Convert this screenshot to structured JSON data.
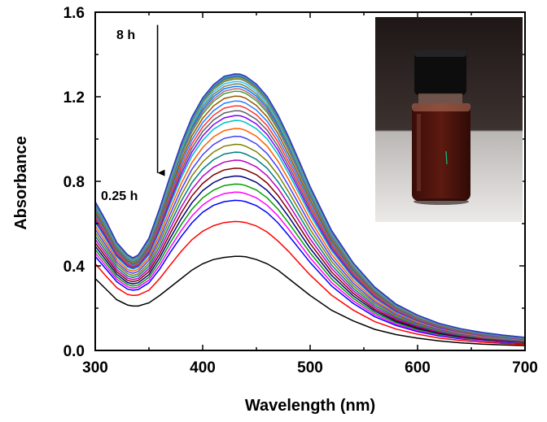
{
  "chart_data": {
    "type": "line",
    "title": "",
    "xlabel": "Wavelength (nm)",
    "ylabel": "Absorbance",
    "xlim": [
      300,
      700
    ],
    "ylim": [
      0.0,
      1.6
    ],
    "x_ticks": [
      "300",
      "400",
      "500",
      "600",
      "700"
    ],
    "y_ticks": [
      "0.0",
      "0.4",
      "0.8",
      "1.2",
      "1.6"
    ],
    "grid": false,
    "legend": "none",
    "annotations": {
      "top_label": "8 h",
      "bottom_label": "0.25 h",
      "arrow_x": 358,
      "arrow_y_from": 1.54,
      "arrow_y_to": 0.84
    },
    "inset_image": "photo-of-vial-with-dark-red-solution",
    "x": [
      300,
      310,
      320,
      330,
      335,
      340,
      350,
      360,
      370,
      380,
      390,
      400,
      410,
      420,
      430,
      435,
      440,
      450,
      460,
      470,
      480,
      490,
      500,
      520,
      540,
      560,
      580,
      600,
      620,
      640,
      660,
      680,
      700
    ],
    "series_colors": [
      "#000000",
      "#ff0000",
      "#0000ff",
      "#ff00ff",
      "#00a000",
      "#000080",
      "#800000",
      "#c000c0",
      "#008080",
      "#808000",
      "#4040ff",
      "#ff6000",
      "#00c0c0",
      "#8000ff",
      "#606060",
      "#ff3030",
      "#2080ff",
      "#a05000",
      "#40a040",
      "#c06080",
      "#0080ff",
      "#808040",
      "#30c0ff",
      "#608080",
      "#a0a020",
      "#4060a0",
      "#20a0a0",
      "#6060ff",
      "#40c080",
      "#3030c0"
    ],
    "series": [
      {
        "values": [
          0.34,
          0.29,
          0.24,
          0.215,
          0.21,
          0.21,
          0.225,
          0.26,
          0.3,
          0.34,
          0.38,
          0.41,
          0.43,
          0.44,
          0.445,
          0.445,
          0.443,
          0.43,
          0.41,
          0.38,
          0.34,
          0.3,
          0.26,
          0.19,
          0.14,
          0.1,
          0.075,
          0.058,
          0.045,
          0.036,
          0.03,
          0.026,
          0.023
        ]
      },
      {
        "values": [
          0.41,
          0.352,
          0.297,
          0.265,
          0.26,
          0.262,
          0.285,
          0.34,
          0.405,
          0.469,
          0.524,
          0.564,
          0.59,
          0.605,
          0.61,
          0.609,
          0.605,
          0.589,
          0.56,
          0.518,
          0.468,
          0.412,
          0.357,
          0.261,
          0.191,
          0.137,
          0.101,
          0.077,
          0.059,
          0.047,
          0.039,
          0.033,
          0.028
        ]
      },
      {
        "values": [
          0.445,
          0.385,
          0.325,
          0.29,
          0.285,
          0.288,
          0.32,
          0.385,
          0.465,
          0.539,
          0.604,
          0.654,
          0.686,
          0.704,
          0.71,
          0.709,
          0.704,
          0.685,
          0.652,
          0.604,
          0.544,
          0.48,
          0.416,
          0.305,
          0.223,
          0.16,
          0.118,
          0.089,
          0.069,
          0.055,
          0.046,
          0.039,
          0.033
        ]
      },
      {
        "values": [
          0.461,
          0.399,
          0.337,
          0.301,
          0.295,
          0.299,
          0.333,
          0.403,
          0.488,
          0.567,
          0.636,
          0.688,
          0.722,
          0.742,
          0.749,
          0.748,
          0.742,
          0.722,
          0.687,
          0.637,
          0.574,
          0.506,
          0.438,
          0.321,
          0.235,
          0.169,
          0.124,
          0.094,
          0.073,
          0.058,
          0.048,
          0.041,
          0.035
        ]
      },
      {
        "values": [
          0.477,
          0.413,
          0.348,
          0.311,
          0.305,
          0.309,
          0.346,
          0.421,
          0.511,
          0.595,
          0.668,
          0.722,
          0.758,
          0.78,
          0.787,
          0.786,
          0.78,
          0.759,
          0.722,
          0.669,
          0.603,
          0.532,
          0.461,
          0.338,
          0.247,
          0.178,
          0.131,
          0.099,
          0.076,
          0.061,
          0.051,
          0.043,
          0.037
        ]
      },
      {
        "values": [
          0.493,
          0.427,
          0.36,
          0.321,
          0.315,
          0.32,
          0.359,
          0.439,
          0.533,
          0.622,
          0.699,
          0.756,
          0.794,
          0.817,
          0.825,
          0.824,
          0.817,
          0.795,
          0.757,
          0.702,
          0.633,
          0.558,
          0.483,
          0.355,
          0.259,
          0.187,
          0.137,
          0.104,
          0.08,
          0.064,
          0.053,
          0.045,
          0.039
        ]
      },
      {
        "values": [
          0.509,
          0.441,
          0.372,
          0.332,
          0.325,
          0.331,
          0.373,
          0.457,
          0.556,
          0.65,
          0.731,
          0.79,
          0.83,
          0.854,
          0.862,
          0.861,
          0.854,
          0.831,
          0.792,
          0.734,
          0.662,
          0.584,
          0.506,
          0.371,
          0.271,
          0.195,
          0.143,
          0.109,
          0.084,
          0.067,
          0.055,
          0.047,
          0.04
        ]
      },
      {
        "values": [
          0.525,
          0.455,
          0.383,
          0.342,
          0.335,
          0.341,
          0.386,
          0.475,
          0.579,
          0.678,
          0.762,
          0.824,
          0.866,
          0.891,
          0.9,
          0.899,
          0.892,
          0.868,
          0.827,
          0.767,
          0.691,
          0.61,
          0.528,
          0.388,
          0.283,
          0.204,
          0.15,
          0.114,
          0.088,
          0.07,
          0.058,
          0.049,
          0.042
        ]
      },
      {
        "values": [
          0.541,
          0.469,
          0.395,
          0.352,
          0.345,
          0.352,
          0.399,
          0.493,
          0.602,
          0.706,
          0.794,
          0.858,
          0.902,
          0.929,
          0.938,
          0.937,
          0.929,
          0.904,
          0.862,
          0.799,
          0.721,
          0.636,
          0.551,
          0.404,
          0.295,
          0.213,
          0.156,
          0.118,
          0.091,
          0.073,
          0.06,
          0.051,
          0.044
        ]
      },
      {
        "values": [
          0.557,
          0.483,
          0.407,
          0.363,
          0.355,
          0.362,
          0.412,
          0.511,
          0.625,
          0.734,
          0.826,
          0.892,
          0.938,
          0.966,
          0.975,
          0.974,
          0.966,
          0.94,
          0.896,
          0.831,
          0.75,
          0.662,
          0.573,
          0.421,
          0.307,
          0.222,
          0.162,
          0.123,
          0.095,
          0.076,
          0.062,
          0.053,
          0.045
        ]
      },
      {
        "values": [
          0.573,
          0.497,
          0.418,
          0.373,
          0.365,
          0.373,
          0.426,
          0.529,
          0.648,
          0.761,
          0.857,
          0.926,
          0.974,
          1.003,
          1.013,
          1.012,
          1.004,
          0.977,
          0.931,
          0.864,
          0.779,
          0.688,
          0.596,
          0.437,
          0.319,
          0.23,
          0.169,
          0.128,
          0.099,
          0.079,
          0.065,
          0.055,
          0.047
        ]
      },
      {
        "values": [
          0.589,
          0.511,
          0.43,
          0.383,
          0.375,
          0.384,
          0.439,
          0.547,
          0.671,
          0.789,
          0.889,
          0.96,
          1.01,
          1.04,
          1.05,
          1.049,
          1.041,
          1.013,
          0.966,
          0.896,
          0.808,
          0.714,
          0.618,
          0.454,
          0.331,
          0.239,
          0.175,
          0.133,
          0.103,
          0.082,
          0.067,
          0.057,
          0.049
        ]
      },
      {
        "values": [
          0.605,
          0.525,
          0.442,
          0.394,
          0.385,
          0.394,
          0.452,
          0.565,
          0.694,
          0.817,
          0.92,
          0.994,
          1.046,
          1.077,
          1.088,
          1.087,
          1.078,
          1.049,
          1.0,
          0.928,
          0.837,
          0.74,
          0.641,
          0.471,
          0.343,
          0.248,
          0.181,
          0.138,
          0.106,
          0.085,
          0.07,
          0.059,
          0.051
        ]
      },
      {
        "values": [
          0.615,
          0.534,
          0.449,
          0.4,
          0.39,
          0.4,
          0.46,
          0.576,
          0.708,
          0.833,
          0.939,
          1.015,
          1.068,
          1.1,
          1.111,
          1.11,
          1.101,
          1.071,
          1.021,
          0.948,
          0.855,
          0.756,
          0.655,
          0.481,
          0.351,
          0.253,
          0.185,
          0.141,
          0.108,
          0.087,
          0.071,
          0.061,
          0.052
        ]
      },
      {
        "values": [
          0.625,
          0.543,
          0.456,
          0.406,
          0.395,
          0.405,
          0.468,
          0.587,
          0.722,
          0.85,
          0.958,
          1.036,
          1.09,
          1.123,
          1.134,
          1.133,
          1.124,
          1.093,
          1.042,
          0.967,
          0.873,
          0.772,
          0.669,
          0.491,
          0.358,
          0.259,
          0.189,
          0.144,
          0.111,
          0.089,
          0.073,
          0.062,
          0.053
        ]
      },
      {
        "values": [
          0.635,
          0.552,
          0.463,
          0.412,
          0.4,
          0.411,
          0.476,
          0.598,
          0.736,
          0.867,
          0.977,
          1.057,
          1.112,
          1.146,
          1.157,
          1.156,
          1.147,
          1.115,
          1.063,
          0.987,
          0.891,
          0.788,
          0.683,
          0.501,
          0.366,
          0.264,
          0.193,
          0.147,
          0.113,
          0.09,
          0.074,
          0.063,
          0.054
        ]
      },
      {
        "values": [
          0.645,
          0.561,
          0.47,
          0.418,
          0.405,
          0.416,
          0.484,
          0.609,
          0.75,
          0.884,
          0.996,
          1.078,
          1.134,
          1.169,
          1.18,
          1.179,
          1.17,
          1.137,
          1.084,
          1.006,
          0.909,
          0.804,
          0.697,
          0.511,
          0.373,
          0.27,
          0.197,
          0.15,
          0.115,
          0.092,
          0.076,
          0.064,
          0.055
        ]
      },
      {
        "values": [
          0.655,
          0.57,
          0.477,
          0.424,
          0.41,
          0.422,
          0.492,
          0.62,
          0.764,
          0.9,
          1.015,
          1.098,
          1.156,
          1.192,
          1.203,
          1.202,
          1.193,
          1.159,
          1.105,
          1.026,
          0.927,
          0.82,
          0.711,
          0.521,
          0.381,
          0.275,
          0.201,
          0.153,
          0.117,
          0.094,
          0.077,
          0.066,
          0.056
        ]
      },
      {
        "values": [
          0.665,
          0.579,
          0.484,
          0.43,
          0.415,
          0.427,
          0.5,
          0.631,
          0.778,
          0.917,
          1.034,
          1.119,
          1.178,
          1.215,
          1.226,
          1.225,
          1.216,
          1.181,
          1.126,
          1.045,
          0.945,
          0.836,
          0.725,
          0.531,
          0.388,
          0.281,
          0.205,
          0.156,
          0.12,
          0.096,
          0.079,
          0.067,
          0.057
        ]
      },
      {
        "values": [
          0.67,
          0.583,
          0.488,
          0.433,
          0.418,
          0.43,
          0.504,
          0.636,
          0.785,
          0.925,
          1.044,
          1.13,
          1.189,
          1.226,
          1.238,
          1.237,
          1.227,
          1.192,
          1.136,
          1.055,
          0.954,
          0.844,
          0.732,
          0.536,
          0.392,
          0.284,
          0.207,
          0.157,
          0.121,
          0.097,
          0.08,
          0.068,
          0.058
        ]
      },
      {
        "values": [
          0.675,
          0.588,
          0.491,
          0.436,
          0.421,
          0.433,
          0.508,
          0.642,
          0.792,
          0.934,
          1.053,
          1.14,
          1.2,
          1.238,
          1.249,
          1.248,
          1.239,
          1.203,
          1.147,
          1.064,
          0.963,
          0.852,
          0.739,
          0.541,
          0.396,
          0.286,
          0.209,
          0.159,
          0.122,
          0.098,
          0.08,
          0.068,
          0.058
        ]
      },
      {
        "values": [
          0.68,
          0.592,
          0.495,
          0.439,
          0.424,
          0.436,
          0.512,
          0.647,
          0.799,
          0.942,
          1.063,
          1.151,
          1.211,
          1.249,
          1.261,
          1.26,
          1.25,
          1.214,
          1.157,
          1.074,
          0.972,
          0.86,
          0.746,
          0.546,
          0.399,
          0.289,
          0.211,
          0.16,
          0.123,
          0.099,
          0.081,
          0.069,
          0.059
        ]
      },
      {
        "values": [
          0.685,
          0.597,
          0.498,
          0.442,
          0.427,
          0.439,
          0.516,
          0.653,
          0.806,
          0.951,
          1.072,
          1.161,
          1.222,
          1.261,
          1.272,
          1.271,
          1.262,
          1.225,
          1.168,
          1.083,
          0.981,
          0.868,
          0.753,
          0.551,
          0.403,
          0.291,
          0.213,
          0.162,
          0.124,
          0.1,
          0.082,
          0.07,
          0.06
        ]
      },
      {
        "values": [
          0.69,
          0.601,
          0.502,
          0.445,
          0.43,
          0.442,
          0.52,
          0.658,
          0.813,
          0.959,
          1.082,
          1.172,
          1.233,
          1.272,
          1.284,
          1.283,
          1.273,
          1.236,
          1.178,
          1.093,
          0.99,
          0.876,
          0.76,
          0.556,
          0.407,
          0.294,
          0.215,
          0.163,
          0.125,
          0.1,
          0.083,
          0.07,
          0.06
        ]
      },
      {
        "values": [
          0.693,
          0.604,
          0.504,
          0.447,
          0.432,
          0.444,
          0.522,
          0.661,
          0.817,
          0.963,
          1.087,
          1.177,
          1.238,
          1.277,
          1.289,
          1.288,
          1.278,
          1.241,
          1.183,
          1.098,
          0.994,
          0.88,
          0.763,
          0.559,
          0.409,
          0.295,
          0.216,
          0.164,
          0.126,
          0.101,
          0.083,
          0.071,
          0.06
        ]
      },
      {
        "values": [
          0.696,
          0.606,
          0.506,
          0.449,
          0.434,
          0.446,
          0.525,
          0.665,
          0.821,
          0.968,
          1.092,
          1.182,
          1.244,
          1.283,
          1.295,
          1.294,
          1.284,
          1.247,
          1.189,
          1.103,
          0.999,
          0.884,
          0.767,
          0.561,
          0.411,
          0.297,
          0.217,
          0.165,
          0.126,
          0.101,
          0.084,
          0.071,
          0.061
        ]
      },
      {
        "values": [
          0.698,
          0.608,
          0.508,
          0.45,
          0.435,
          0.448,
          0.527,
          0.667,
          0.823,
          0.971,
          1.095,
          1.186,
          1.248,
          1.287,
          1.299,
          1.298,
          1.288,
          1.251,
          1.192,
          1.106,
          1.002,
          0.887,
          0.769,
          0.563,
          0.412,
          0.298,
          0.218,
          0.165,
          0.127,
          0.102,
          0.084,
          0.071,
          0.061
        ]
      },
      {
        "values": [
          0.7,
          0.61,
          0.509,
          0.451,
          0.436,
          0.449,
          0.528,
          0.669,
          0.826,
          0.974,
          1.098,
          1.19,
          1.251,
          1.291,
          1.302,
          1.301,
          1.292,
          1.254,
          1.195,
          1.109,
          1.005,
          0.889,
          0.771,
          0.564,
          0.413,
          0.299,
          0.218,
          0.166,
          0.127,
          0.102,
          0.084,
          0.072,
          0.061
        ]
      },
      {
        "values": [
          0.702,
          0.612,
          0.51,
          0.452,
          0.437,
          0.45,
          0.53,
          0.671,
          0.828,
          0.976,
          1.101,
          1.192,
          1.254,
          1.294,
          1.305,
          1.304,
          1.294,
          1.257,
          1.198,
          1.112,
          1.007,
          0.891,
          0.773,
          0.566,
          0.414,
          0.3,
          0.219,
          0.166,
          0.128,
          0.102,
          0.085,
          0.072,
          0.061
        ]
      },
      {
        "values": [
          0.704,
          0.613,
          0.511,
          0.453,
          0.438,
          0.451,
          0.531,
          0.673,
          0.83,
          0.979,
          1.104,
          1.195,
          1.257,
          1.297,
          1.308,
          1.307,
          1.297,
          1.26,
          1.201,
          1.115,
          1.01,
          0.894,
          0.775,
          0.567,
          0.415,
          0.3,
          0.219,
          0.167,
          0.128,
          0.103,
          0.085,
          0.072,
          0.062
        ]
      }
    ]
  }
}
